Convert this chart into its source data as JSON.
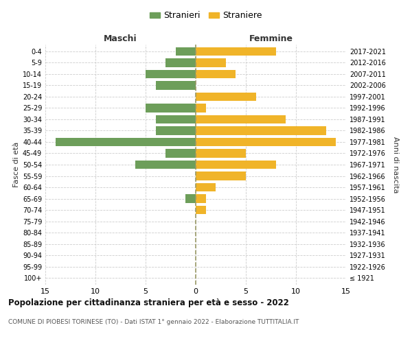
{
  "age_groups": [
    "100+",
    "95-99",
    "90-94",
    "85-89",
    "80-84",
    "75-79",
    "70-74",
    "65-69",
    "60-64",
    "55-59",
    "50-54",
    "45-49",
    "40-44",
    "35-39",
    "30-34",
    "25-29",
    "20-24",
    "15-19",
    "10-14",
    "5-9",
    "0-4"
  ],
  "birth_years": [
    "≤ 1921",
    "1922-1926",
    "1927-1931",
    "1932-1936",
    "1937-1941",
    "1942-1946",
    "1947-1951",
    "1952-1956",
    "1957-1961",
    "1962-1966",
    "1967-1971",
    "1972-1976",
    "1977-1981",
    "1982-1986",
    "1987-1991",
    "1992-1996",
    "1997-2001",
    "2002-2006",
    "2007-2011",
    "2012-2016",
    "2017-2021"
  ],
  "maschi": [
    0,
    0,
    0,
    0,
    0,
    0,
    0,
    1,
    0,
    0,
    6,
    3,
    14,
    4,
    4,
    5,
    0,
    4,
    5,
    3,
    2
  ],
  "femmine": [
    0,
    0,
    0,
    0,
    0,
    0,
    1,
    1,
    2,
    5,
    8,
    5,
    14,
    13,
    9,
    1,
    6,
    0,
    4,
    3,
    8
  ],
  "maschi_color": "#6d9e5a",
  "femmine_color": "#f0b429",
  "title": "Popolazione per cittadinanza straniera per età e sesso - 2022",
  "subtitle": "COMUNE DI PIOBESI TORINESE (TO) - Dati ISTAT 1° gennaio 2022 - Elaborazione TUTTITALIA.IT",
  "xlabel_left": "Maschi",
  "xlabel_right": "Femmine",
  "ylabel_left": "Fasce di età",
  "ylabel_right": "Anni di nascita",
  "legend_maschi": "Stranieri",
  "legend_femmine": "Straniere",
  "xlim": 15,
  "background_color": "#ffffff",
  "grid_color": "#cccccc",
  "dashed_line_color": "#999966"
}
